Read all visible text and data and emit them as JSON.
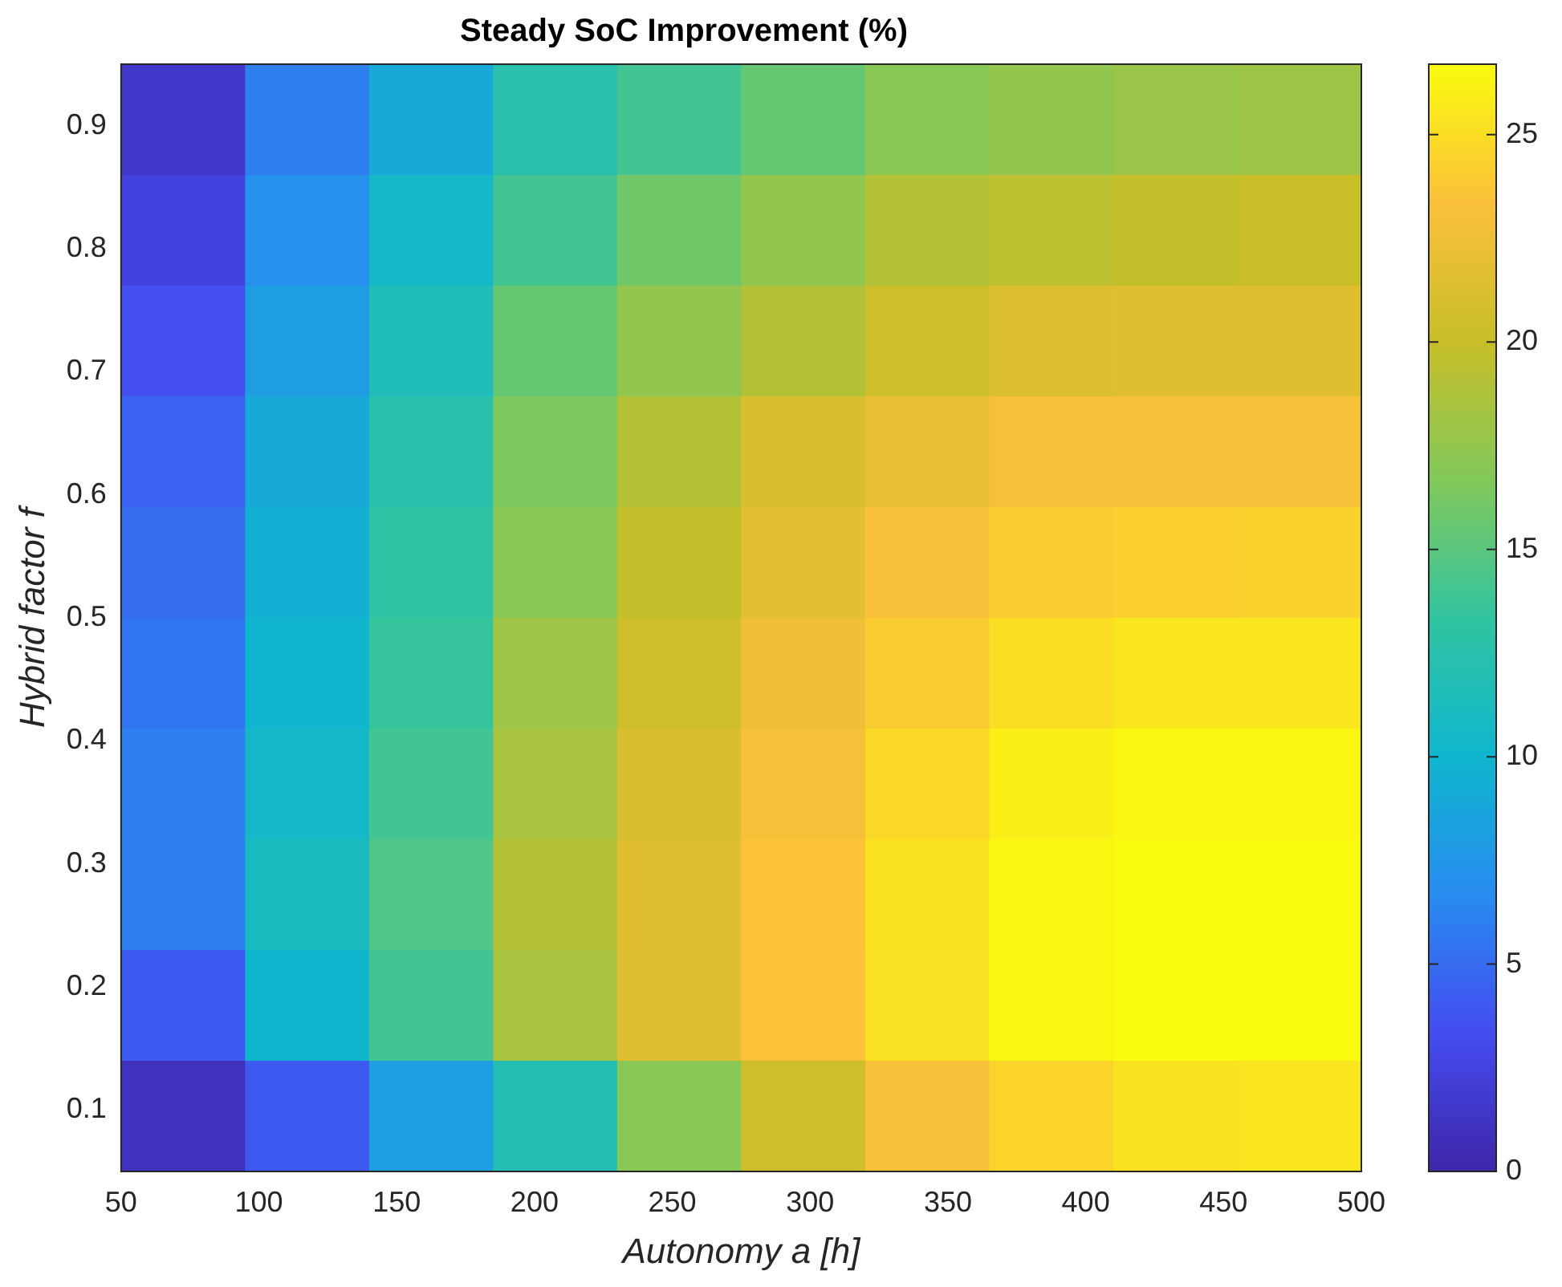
{
  "chart_data": {
    "type": "heatmap",
    "title": "Steady SoC Improvement (%)",
    "xlabel": "Autonomy a [h]",
    "ylabel": "Hybrid factor f",
    "x": [
      72.5,
      117.5,
      162.5,
      207.5,
      252.5,
      297.5,
      342.5,
      387.5,
      432.5,
      477.5
    ],
    "y": [
      0.905,
      0.815,
      0.725,
      0.635,
      0.545,
      0.455,
      0.365,
      0.275,
      0.185,
      0.095
    ],
    "cells": [
      [
        1.5,
        6,
        9,
        12.5,
        14,
        15.5,
        17,
        17.5,
        17.8,
        18
      ],
      [
        2.5,
        7,
        10.5,
        14,
        16,
        17.5,
        19,
        19.5,
        19.8,
        20
      ],
      [
        3.5,
        8,
        11.5,
        15.5,
        17.5,
        19,
        20.5,
        21.3,
        21.5,
        21.5
      ],
      [
        4.5,
        9,
        12.5,
        16.5,
        19,
        21,
        22,
        23,
        23,
        23
      ],
      [
        5,
        9.5,
        13,
        17,
        19.8,
        21.8,
        23.2,
        24,
        24.2,
        24.3
      ],
      [
        5.5,
        10,
        13.5,
        18,
        20.5,
        22.5,
        24,
        25,
        25.5,
        25.5
      ],
      [
        6,
        10.5,
        14,
        18.5,
        21,
        23,
        24.8,
        26,
        26.5,
        26.5
      ],
      [
        6,
        11,
        14.5,
        19,
        21.5,
        23.5,
        25.3,
        26.5,
        26.7,
        26.7
      ],
      [
        4,
        10,
        14,
        18.5,
        21.5,
        23.5,
        25.2,
        26.5,
        26.7,
        26.7
      ],
      [
        1,
        4,
        8,
        12,
        17,
        20.5,
        23,
        24.5,
        25.3,
        25.5
      ]
    ],
    "xlim": [
      50,
      500
    ],
    "xticks": [
      50,
      100,
      150,
      200,
      250,
      300,
      350,
      400,
      450,
      500
    ],
    "ylim": [
      0.05,
      0.95
    ],
    "yticks": [
      0.1,
      0.2,
      0.3,
      0.4,
      0.5,
      0.6,
      0.7,
      0.8,
      0.9
    ],
    "clim": [
      0,
      26.7
    ],
    "cticks": [
      0,
      5,
      10,
      15,
      20,
      25
    ]
  }
}
